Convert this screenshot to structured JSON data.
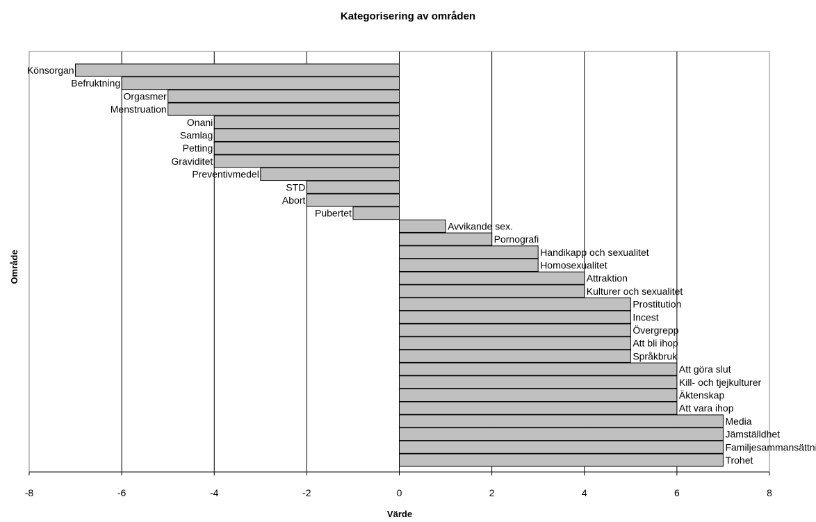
{
  "chart_data": {
    "type": "bar",
    "orientation": "horizontal",
    "title": "Kategorisering av områden",
    "xlabel": "Värde",
    "ylabel": "Område",
    "xlim": [
      -8,
      8
    ],
    "xticks": [
      -8,
      -6,
      -4,
      -2,
      0,
      2,
      4,
      6,
      8
    ],
    "grid": "vertical",
    "legend": "none",
    "bar_color": "#c0c0c0",
    "categories": [
      "Könsorgan",
      "Befruktning",
      "Orgasmer",
      "Menstruation",
      "Onani",
      "Samlag",
      "Petting",
      "Graviditet",
      "Preventivmedel",
      "STD",
      "Abort",
      "Pubertet",
      "Avvikande sex.",
      "Pornografi",
      "Handikapp och sexualitet",
      "Homosexualitet",
      "Attraktion",
      "Kulturer och sexualitet",
      "Prostitution",
      "Incest",
      "Övergrepp",
      "Att bli ihop",
      "Språkbruk",
      "Att göra slut",
      "Kill- och tjejkulturer",
      "Äktenskap",
      "Att vara ihop",
      "Media",
      "Jämställdhet",
      "Familjesammansättning",
      "Trohet"
    ],
    "values": [
      -7,
      -6,
      -5,
      -5,
      -4,
      -4,
      -4,
      -4,
      -3,
      -2,
      -2,
      -1,
      1,
      2,
      3,
      3,
      4,
      4,
      5,
      5,
      5,
      5,
      5,
      6,
      6,
      6,
      6,
      7,
      7,
      7,
      7
    ]
  }
}
